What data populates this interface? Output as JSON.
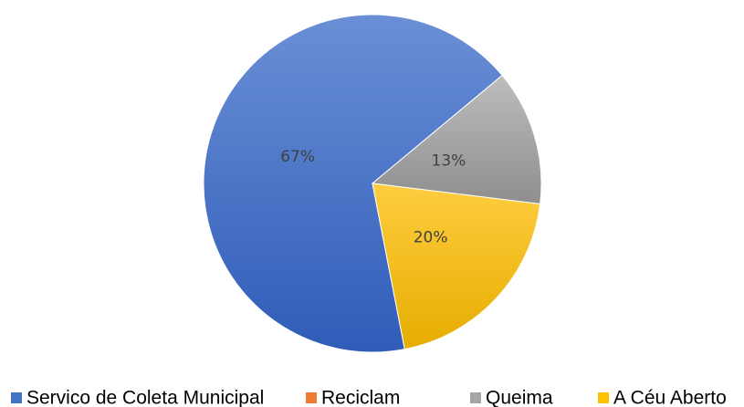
{
  "chart_data": {
    "type": "pie",
    "categories": [
      "Servico de Coleta Municipal",
      "Reciclam",
      "Queima",
      "A Céu Aberto"
    ],
    "values": [
      67,
      0,
      13,
      20
    ],
    "value_labels": [
      "67%",
      null,
      "13%",
      "20%"
    ],
    "colors": [
      "#4472c4",
      "#ed7d31",
      "#a5a5a5",
      "#ffc000"
    ],
    "start_angle": 169,
    "legend": "bottom"
  }
}
